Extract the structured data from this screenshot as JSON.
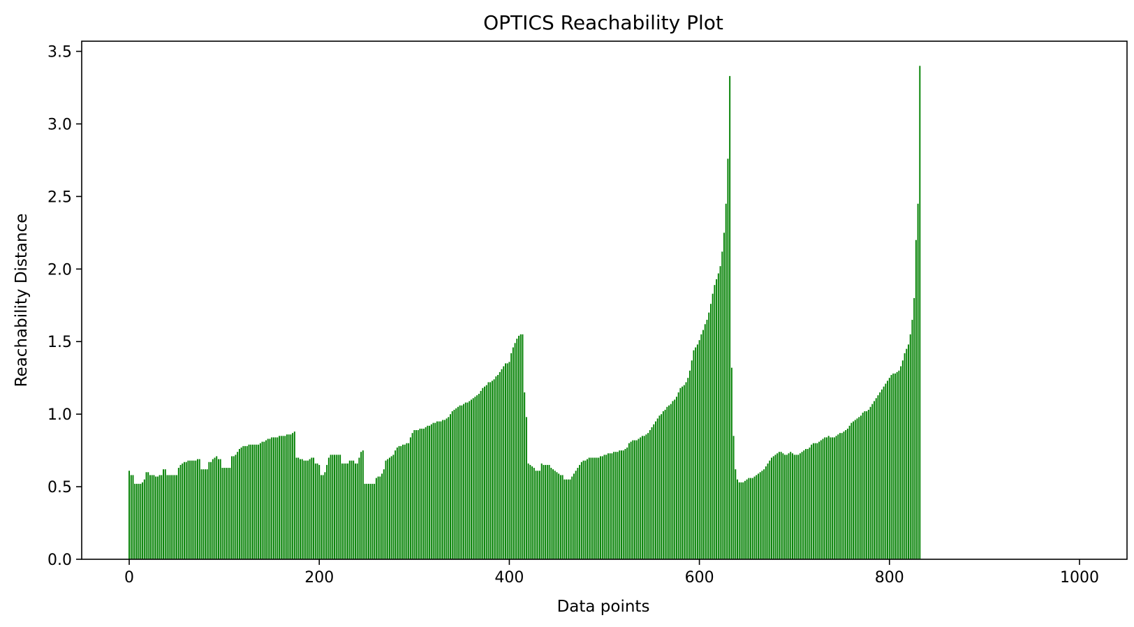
{
  "chart_data": {
    "type": "bar",
    "title": "OPTICS Reachability Plot",
    "xlabel": "Data points",
    "ylabel": "Reachability Distance",
    "xlim": [
      -50,
      1050
    ],
    "ylim": [
      0,
      3.57
    ],
    "xticks": [
      0,
      200,
      400,
      600,
      800,
      1000
    ],
    "xtick_labels": [
      "0",
      "200",
      "400",
      "600",
      "800",
      "1000"
    ],
    "yticks": [
      0.0,
      0.5,
      1.0,
      1.5,
      2.0,
      2.5,
      3.0,
      3.5
    ],
    "ytick_labels": [
      "0.0",
      "0.5",
      "1.0",
      "1.5",
      "2.0",
      "2.5",
      "3.0",
      "3.5"
    ],
    "bar_color": "#008000",
    "grid": false,
    "series": [
      {
        "x_start": 0,
        "x_step": 2,
        "values": [
          0.61,
          0.58,
          0.58,
          0.52,
          0.52,
          0.52,
          0.52,
          0.53,
          0.55,
          0.6,
          0.6,
          0.58,
          0.58,
          0.58,
          0.57,
          0.57,
          0.58,
          0.58,
          0.62,
          0.62,
          0.58,
          0.58,
          0.58,
          0.58,
          0.58,
          0.58,
          0.63,
          0.65,
          0.66,
          0.67,
          0.67,
          0.68,
          0.68,
          0.68,
          0.68,
          0.68,
          0.69,
          0.69,
          0.62,
          0.62,
          0.62,
          0.62,
          0.67,
          0.67,
          0.69,
          0.7,
          0.71,
          0.69,
          0.69,
          0.63,
          0.63,
          0.63,
          0.63,
          0.63,
          0.71,
          0.71,
          0.72,
          0.74,
          0.76,
          0.77,
          0.78,
          0.78,
          0.78,
          0.79,
          0.79,
          0.79,
          0.79,
          0.79,
          0.79,
          0.8,
          0.81,
          0.81,
          0.82,
          0.83,
          0.83,
          0.84,
          0.84,
          0.84,
          0.84,
          0.85,
          0.85,
          0.85,
          0.85,
          0.86,
          0.86,
          0.86,
          0.87,
          0.88,
          0.7,
          0.7,
          0.69,
          0.69,
          0.68,
          0.68,
          0.68,
          0.69,
          0.7,
          0.7,
          0.66,
          0.66,
          0.65,
          0.58,
          0.58,
          0.6,
          0.65,
          0.7,
          0.72,
          0.72,
          0.72,
          0.72,
          0.72,
          0.72,
          0.66,
          0.66,
          0.66,
          0.66,
          0.68,
          0.68,
          0.68,
          0.66,
          0.66,
          0.7,
          0.74,
          0.75,
          0.52,
          0.52,
          0.52,
          0.52,
          0.52,
          0.52,
          0.56,
          0.57,
          0.57,
          0.59,
          0.62,
          0.68,
          0.69,
          0.7,
          0.71,
          0.72,
          0.75,
          0.77,
          0.78,
          0.78,
          0.79,
          0.79,
          0.8,
          0.8,
          0.84,
          0.87,
          0.89,
          0.89,
          0.89,
          0.9,
          0.9,
          0.9,
          0.91,
          0.92,
          0.92,
          0.93,
          0.94,
          0.94,
          0.95,
          0.95,
          0.95,
          0.96,
          0.96,
          0.97,
          0.98,
          1.0,
          1.02,
          1.03,
          1.04,
          1.05,
          1.06,
          1.06,
          1.07,
          1.08,
          1.08,
          1.09,
          1.1,
          1.11,
          1.12,
          1.13,
          1.14,
          1.16,
          1.18,
          1.19,
          1.2,
          1.22,
          1.22,
          1.23,
          1.24,
          1.26,
          1.27,
          1.29,
          1.31,
          1.33,
          1.35,
          1.35,
          1.36,
          1.42,
          1.46,
          1.49,
          1.52,
          1.54,
          1.55,
          1.55,
          1.15,
          0.98,
          0.66,
          0.65,
          0.64,
          0.63,
          0.61,
          0.61,
          0.61,
          0.66,
          0.65,
          0.65,
          0.65,
          0.65,
          0.63,
          0.62,
          0.61,
          0.6,
          0.59,
          0.58,
          0.58,
          0.55,
          0.55,
          0.55,
          0.55,
          0.57,
          0.59,
          0.61,
          0.63,
          0.65,
          0.67,
          0.68,
          0.68,
          0.69,
          0.7,
          0.7,
          0.7,
          0.7,
          0.7,
          0.7,
          0.71,
          0.71,
          0.72,
          0.72,
          0.73,
          0.73,
          0.73,
          0.74,
          0.74,
          0.74,
          0.75,
          0.75,
          0.75,
          0.76,
          0.77,
          0.8,
          0.81,
          0.82,
          0.82,
          0.82,
          0.83,
          0.84,
          0.85,
          0.85,
          0.86,
          0.87,
          0.89,
          0.91,
          0.93,
          0.95,
          0.97,
          0.99,
          1.0,
          1.02,
          1.03,
          1.05,
          1.06,
          1.07,
          1.09,
          1.1,
          1.12,
          1.15,
          1.18,
          1.19,
          1.2,
          1.22,
          1.25,
          1.3,
          1.37,
          1.44,
          1.46,
          1.48,
          1.51,
          1.55,
          1.58,
          1.62,
          1.65,
          1.7,
          1.76,
          1.83,
          1.89,
          1.93,
          1.97,
          2.02,
          2.12,
          2.25,
          2.45,
          2.76,
          3.33,
          1.32,
          0.85,
          0.62,
          0.55,
          0.53,
          0.53,
          0.53,
          0.54,
          0.55,
          0.56,
          0.56,
          0.56,
          0.57,
          0.58,
          0.59,
          0.6,
          0.61,
          0.62,
          0.64,
          0.66,
          0.68,
          0.7,
          0.71,
          0.72,
          0.73,
          0.74,
          0.74,
          0.73,
          0.72,
          0.72,
          0.73,
          0.74,
          0.73,
          0.72,
          0.72,
          0.72,
          0.73,
          0.74,
          0.75,
          0.76,
          0.76,
          0.77,
          0.79,
          0.8,
          0.8,
          0.8,
          0.81,
          0.82,
          0.83,
          0.84,
          0.84,
          0.85,
          0.84,
          0.84,
          0.84,
          0.85,
          0.86,
          0.87,
          0.87,
          0.88,
          0.89,
          0.9,
          0.92,
          0.94,
          0.95,
          0.96,
          0.97,
          0.98,
          0.99,
          1.01,
          1.02,
          1.02,
          1.03,
          1.05,
          1.07,
          1.09,
          1.11,
          1.13,
          1.15,
          1.17,
          1.19,
          1.21,
          1.23,
          1.25,
          1.27,
          1.28,
          1.28,
          1.29,
          1.3,
          1.33,
          1.37,
          1.42,
          1.45,
          1.48,
          1.55,
          1.65,
          1.8,
          2.2,
          2.45,
          3.4
        ]
      }
    ]
  }
}
